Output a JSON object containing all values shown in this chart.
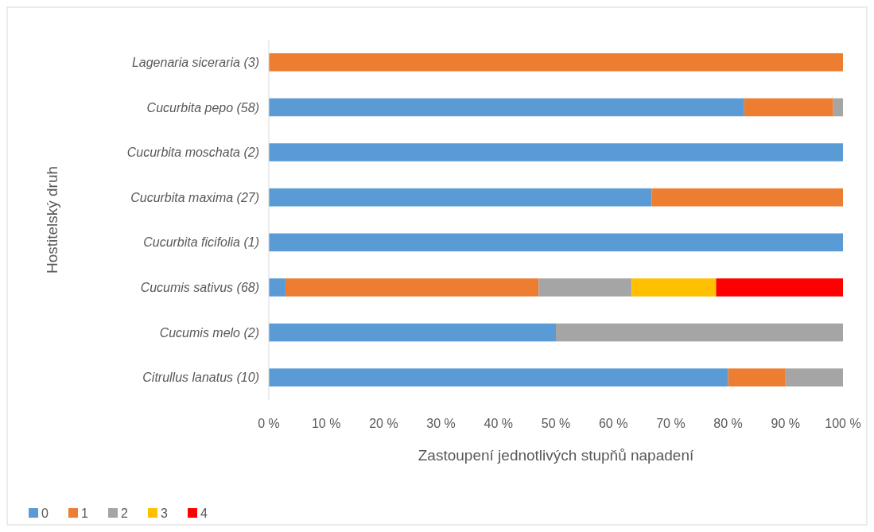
{
  "chart_data": {
    "type": "bar",
    "orientation": "horizontal",
    "stacked": true,
    "xlabel": "Zastoupení jednotlivých stupňů napadení",
    "ylabel": "Hostitelský druh",
    "categories": [
      "Lagenaria siceraria (3)",
      "Cucurbita pepo (58)",
      "Cucurbita moschata (2)",
      "Cucurbita maxima (27)",
      "Cucurbita ficifolia (1)",
      "Cucumis sativus (68)",
      "Cucumis melo (2)",
      "Citrullus lanatus (10)"
    ],
    "series": [
      {
        "name": "0",
        "color": "#5b9bd5",
        "values": [
          0,
          82.8,
          100,
          66.7,
          100,
          2.9,
          50,
          80
        ]
      },
      {
        "name": "1",
        "color": "#ed7d31",
        "values": [
          100,
          15.5,
          0,
          33.3,
          0,
          44.1,
          0,
          10
        ]
      },
      {
        "name": "2",
        "color": "#a5a5a5",
        "values": [
          0,
          1.7,
          0,
          0,
          0,
          16.2,
          50,
          10
        ]
      },
      {
        "name": "3",
        "color": "#ffc000",
        "values": [
          0,
          0,
          0,
          0,
          0,
          14.7,
          0,
          0
        ]
      },
      {
        "name": "4",
        "color": "#ff0000",
        "values": [
          0,
          0,
          0,
          0,
          0,
          22.1,
          0,
          0
        ]
      }
    ],
    "xlim": [
      0,
      100
    ],
    "xticks": [
      {
        "value": 0,
        "label": "0 %"
      },
      {
        "value": 10,
        "label": "10 %"
      },
      {
        "value": 20,
        "label": "20 %"
      },
      {
        "value": 30,
        "label": "30 %"
      },
      {
        "value": 40,
        "label": "40 %"
      },
      {
        "value": 50,
        "label": "50 %"
      },
      {
        "value": 60,
        "label": "60 %"
      },
      {
        "value": 70,
        "label": "70 %"
      },
      {
        "value": 80,
        "label": "80 %"
      },
      {
        "value": 90,
        "label": "90 %"
      },
      {
        "value": 100,
        "label": "100 %"
      }
    ],
    "legend": "bottom left"
  }
}
